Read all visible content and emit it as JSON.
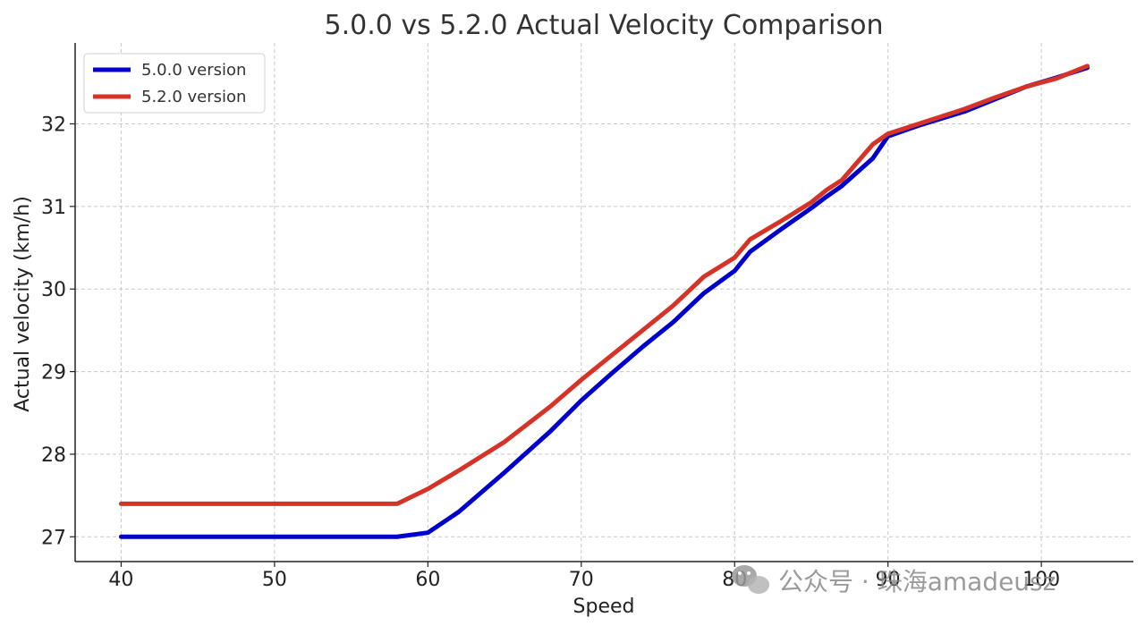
{
  "chart_data": {
    "type": "line",
    "title": "5.0.0 vs 5.2.0 Actual Velocity Comparison",
    "xlabel": "Speed",
    "ylabel": "Actual velocity (km/h)",
    "xlim": [
      37,
      106
    ],
    "ylim": [
      26.7,
      32.98
    ],
    "x_ticks": [
      40,
      50,
      60,
      70,
      80,
      90,
      100
    ],
    "y_ticks": [
      27,
      28,
      29,
      30,
      31,
      32
    ],
    "grid": true,
    "legend_position": "top-left",
    "series": [
      {
        "name": "5.0.0 version",
        "color": "#0000cc",
        "points": [
          [
            40,
            27.0
          ],
          [
            58,
            27.0
          ],
          [
            60,
            27.05
          ],
          [
            62,
            27.3
          ],
          [
            65,
            27.78
          ],
          [
            68,
            28.28
          ],
          [
            70,
            28.65
          ],
          [
            72,
            28.98
          ],
          [
            74,
            29.3
          ],
          [
            76,
            29.6
          ],
          [
            78,
            29.95
          ],
          [
            80,
            30.22
          ],
          [
            81,
            30.45
          ],
          [
            83,
            30.72
          ],
          [
            85,
            30.98
          ],
          [
            86,
            31.12
          ],
          [
            87,
            31.25
          ],
          [
            89,
            31.58
          ],
          [
            90,
            31.85
          ],
          [
            92,
            31.98
          ],
          [
            95,
            32.15
          ],
          [
            97,
            32.3
          ],
          [
            99,
            32.45
          ],
          [
            101,
            32.56
          ],
          [
            103,
            32.68
          ]
        ]
      },
      {
        "name": "5.2.0 version",
        "color": "#d63328",
        "points": [
          [
            40,
            27.4
          ],
          [
            58,
            27.4
          ],
          [
            60,
            27.58
          ],
          [
            62,
            27.8
          ],
          [
            65,
            28.15
          ],
          [
            68,
            28.58
          ],
          [
            70,
            28.9
          ],
          [
            72,
            29.2
          ],
          [
            74,
            29.5
          ],
          [
            76,
            29.8
          ],
          [
            78,
            30.15
          ],
          [
            80,
            30.38
          ],
          [
            81,
            30.6
          ],
          [
            83,
            30.82
          ],
          [
            85,
            31.05
          ],
          [
            86,
            31.2
          ],
          [
            87,
            31.32
          ],
          [
            89,
            31.75
          ],
          [
            90,
            31.88
          ],
          [
            92,
            32.0
          ],
          [
            95,
            32.18
          ],
          [
            97,
            32.32
          ],
          [
            99,
            32.45
          ],
          [
            101,
            32.55
          ],
          [
            103,
            32.7
          ]
        ]
      }
    ]
  },
  "watermark": {
    "text": "公众号 · 珠海amadeusz"
  }
}
